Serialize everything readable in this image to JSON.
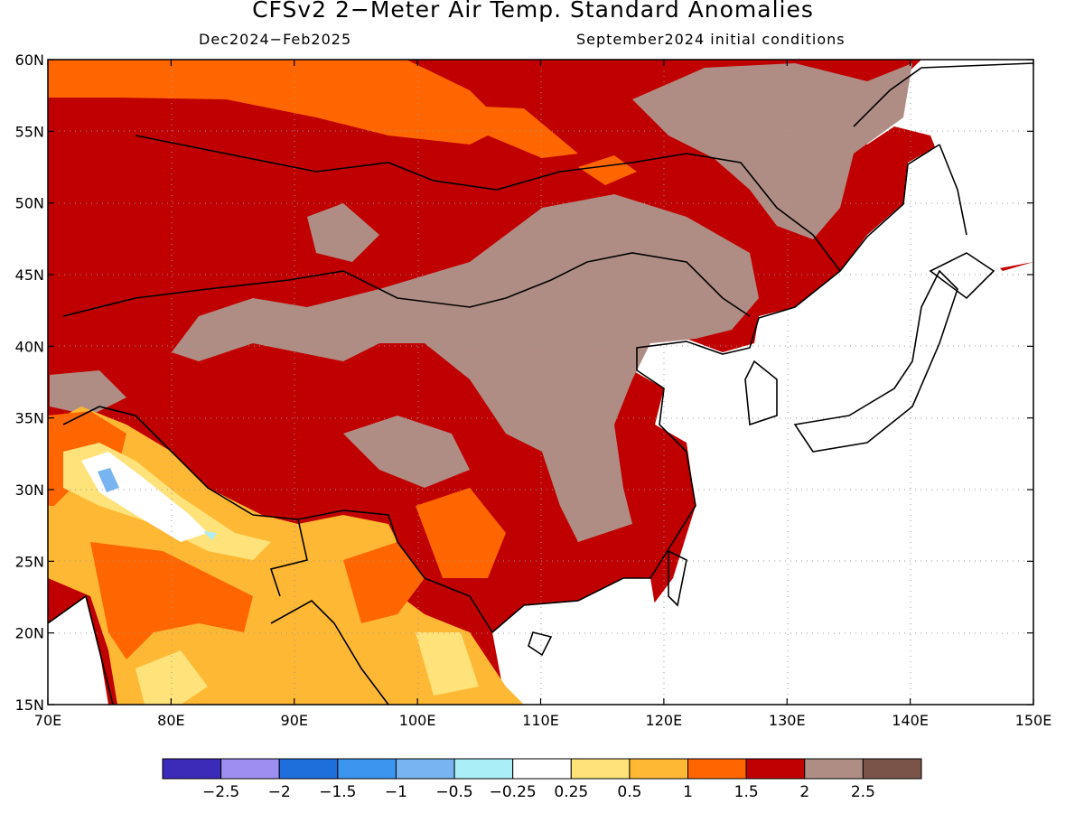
{
  "title": "CFSv2 2−Meter Air Temp. Standard Anomalies",
  "subtitle_left": "Dec2024−Feb2025",
  "subtitle_right": "September2024 initial conditions",
  "map": {
    "lon_range": [
      70,
      150
    ],
    "lat_range": [
      15,
      60
    ],
    "lon_ticks": [
      "70E",
      "80E",
      "90E",
      "100E",
      "110E",
      "120E",
      "130E",
      "140E",
      "150E"
    ],
    "lat_ticks": [
      "60N",
      "55N",
      "50N",
      "45N",
      "40N",
      "35N",
      "30N",
      "25N",
      "20N",
      "15N"
    ],
    "gridlines": "dotted",
    "dominant_anomaly_regions": [
      {
        "region": "Siberia / Mongolia / China interior",
        "category": "1.5 to 2",
        "color": "#c00000"
      },
      {
        "region": "Mongolia plateau / Tibet north / NE China",
        "category": "2 to 2.5",
        "color": "#b08d84"
      },
      {
        "region": "NW Siberia",
        "category": "1 to 1.5",
        "color": "#ff6600"
      },
      {
        "region": "India / Southeast Asia",
        "category": "0.5 to 1",
        "color": "#ffb833"
      },
      {
        "region": "NW India",
        "category": "-0.25 to 0.25",
        "color": "#ffffff"
      }
    ]
  },
  "colorbar": {
    "colors": [
      "#3c2ab8",
      "#9f8ef2",
      "#1e6edc",
      "#3c96f0",
      "#78b4f0",
      "#aaeef8",
      "#ffffff",
      "#ffe27a",
      "#ffb833",
      "#ff6600",
      "#c00000",
      "#b08d84",
      "#7a5448"
    ],
    "labels": [
      "−2.5",
      "−2",
      "−1.5",
      "−1",
      "−0.5",
      "−0.25",
      "0.25",
      "0.5",
      "1",
      "1.5",
      "2",
      "2.5"
    ]
  }
}
